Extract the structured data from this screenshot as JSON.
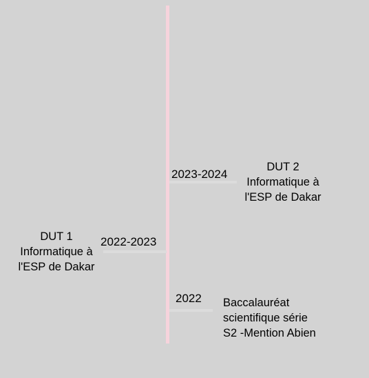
{
  "timeline": {
    "events": [
      {
        "year": "2023-2024",
        "lines": [
          "DUT 2",
          "Informatique à",
          "l'ESP de Dakar"
        ]
      },
      {
        "year": "2022-2023",
        "lines": [
          "DUT 1",
          "Informatique à",
          "l'ESP de Dakar"
        ]
      },
      {
        "year": "2022",
        "lines": [
          "Baccalauréat",
          "scientifique série",
          "S2 -Mention Abien"
        ]
      }
    ]
  },
  "colors": {
    "background": "#d3d3d3",
    "timeline_line": "#f6d3dc",
    "connector": "#dcdcdc"
  }
}
